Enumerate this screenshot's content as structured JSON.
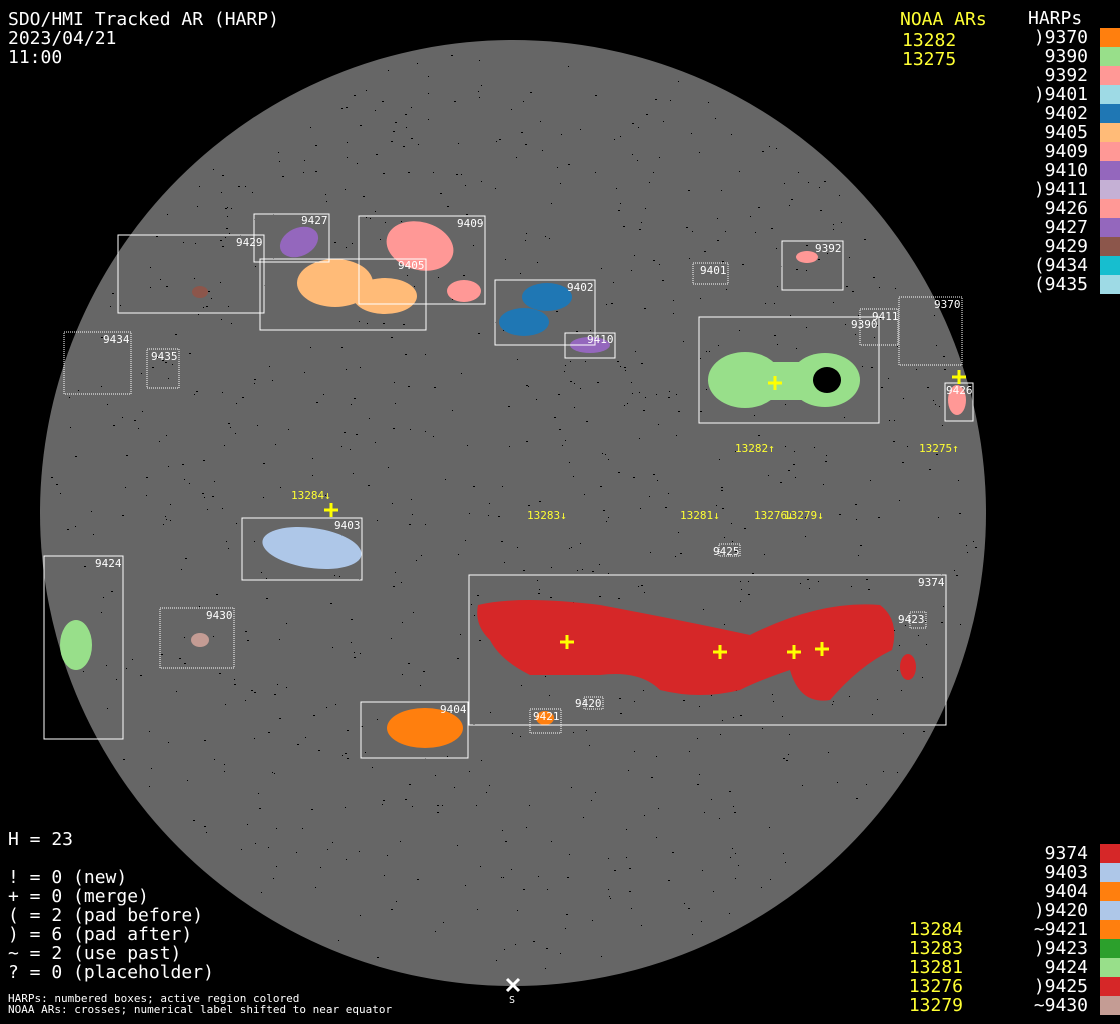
{
  "header": {
    "title": "SDO/HMI Tracked AR (HARP)",
    "date": "2023/04/21",
    "time": "11:00"
  },
  "top_legend": {
    "noaa_title": "NOAA ARs",
    "noaa": [
      "13282",
      "13275"
    ],
    "harps_title": "HARPs",
    "harps": [
      {
        "label": ")9370",
        "color": "#ff7f0e"
      },
      {
        "label": "9390",
        "color": "#98df8a"
      },
      {
        "label": "9392",
        "color": "#ff9896"
      },
      {
        "label": ")9401",
        "color": "#9edae5"
      },
      {
        "label": "9402",
        "color": "#1f77b4"
      },
      {
        "label": "9405",
        "color": "#ffbb78"
      },
      {
        "label": "9409",
        "color": "#ff9896"
      },
      {
        "label": "9410",
        "color": "#9467bd"
      },
      {
        "label": ")9411",
        "color": "#c5b0d5"
      },
      {
        "label": "9426",
        "color": "#ff9896"
      },
      {
        "label": "9427",
        "color": "#9467bd"
      },
      {
        "label": "9429",
        "color": "#8c564b"
      },
      {
        "label": "(9434",
        "color": "#17becf"
      },
      {
        "label": "(9435",
        "color": "#9edae5"
      }
    ]
  },
  "bottom_legend": [
    {
      "noaa": "",
      "label": "9374",
      "color": "#d62728"
    },
    {
      "noaa": "",
      "label": "9403",
      "color": "#aec7e8"
    },
    {
      "noaa": "",
      "label": "9404",
      "color": "#ff7f0e"
    },
    {
      "noaa": "",
      "label": ")9420",
      "color": "#aec7e8"
    },
    {
      "noaa": "13284",
      "label": "~9421",
      "color": "#ff7f0e"
    },
    {
      "noaa": "13283",
      "label": ")9423",
      "color": "#2ca02c"
    },
    {
      "noaa": "13281",
      "label": "9424",
      "color": "#98df8a"
    },
    {
      "noaa": "13276",
      "label": ")9425",
      "color": "#d62728"
    },
    {
      "noaa": "13279",
      "label": "~9430",
      "color": "#c49c94"
    }
  ],
  "stats": {
    "h": "H = 23",
    "lines": [
      "! = 0 (new)",
      "+ = 0 (merge)",
      "( = 2 (pad before)",
      ") = 6 (pad after)",
      "~ = 2 (use past)",
      "? = 0 (placeholder)"
    ]
  },
  "footnotes": [
    "HARPs: numbered boxes; active region colored",
    "NOAA ARs: crosses; numerical label shifted to near equator"
  ],
  "disk": {
    "south_label": "S",
    "disk_color": "#666666"
  },
  "harp_boxes": {
    "h9429": "9429",
    "h9427": "9427",
    "h9409": "9409",
    "h9405": "9405",
    "h9402": "9402",
    "h9410": "9410",
    "h9401": "9401",
    "h9392": "9392",
    "h9390": "9390",
    "h9411": "9411",
    "h9370": "9370",
    "h9426": "9426",
    "h9434": "9434",
    "h9435": "9435",
    "h9403": "9403",
    "h9424": "9424",
    "h9430": "9430",
    "h9374": "9374",
    "h9423": "9423",
    "h9420": "9420",
    "h9421": "9421",
    "h9404": "9404",
    "h9425": "9425"
  },
  "noaa_labels": {
    "n13282": "13282↑",
    "n13275": "13275↑",
    "n13284": "13284↓",
    "n13283": "13283↓",
    "n13281": "13281↓",
    "n13276": "13276↓",
    "n13279": "13279↓"
  }
}
